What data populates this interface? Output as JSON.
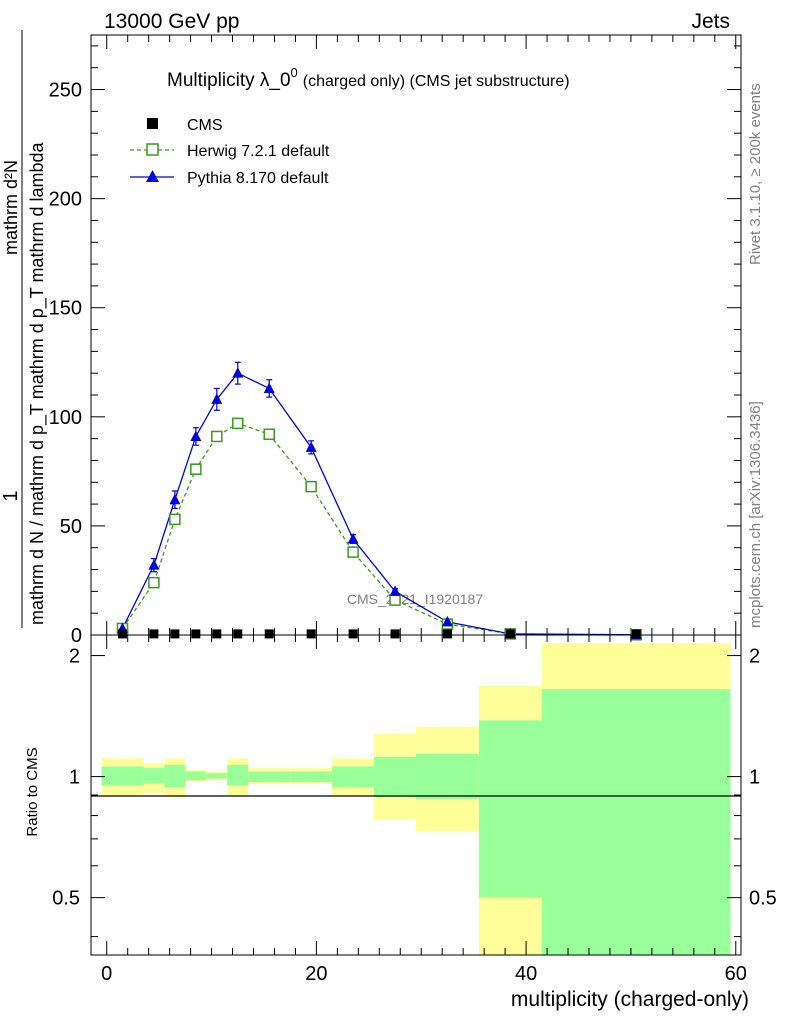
{
  "header": {
    "left": "13000 GeV pp",
    "right": "Jets"
  },
  "side_labels": {
    "rivet": "Rivet 3.1.10, ≥ 200k events",
    "mcplots": "mcplots.cern.ch [arXiv:1306.3436]"
  },
  "watermark": "CMS_2021_I1920187",
  "chart_data": [
    {
      "type": "line",
      "title": "Multiplicity λ_0⁰ (charged only) (CMS jet substructure)",
      "title_parts": {
        "main": "Multiplicity λ_0",
        "sup": "0",
        "sub": "(charged only) (CMS jet substructure)"
      },
      "ylabel_numerator": "1",
      "ylabel_denominator": "mathrm d N / mathrm d p_T mathrm d p_T mathrm d lambda",
      "ylabel_top": "mathrm d²N",
      "xlabel": "",
      "xlim": [
        -1.5,
        60.5
      ],
      "ylim": [
        0,
        275
      ],
      "yticks": [
        0,
        50,
        100,
        150,
        200,
        250
      ],
      "xticks": [
        0,
        20,
        40,
        60
      ],
      "legend": [
        {
          "name": "CMS",
          "marker": "square-filled",
          "color": "#000000"
        },
        {
          "name": "Herwig 7.2.1 default",
          "marker": "square-open",
          "color": "#3a9a1c",
          "dash": true
        },
        {
          "name": "Pythia 8.170 default",
          "marker": "triangle",
          "color": "#0000e0"
        }
      ],
      "series": [
        {
          "name": "CMS",
          "x": [
            1.5,
            4.5,
            6.5,
            8.5,
            10.5,
            12.5,
            15.5,
            19.5,
            23.5,
            27.5,
            32.5,
            38.5,
            50.5
          ],
          "values": [
            0.5,
            0.5,
            0.5,
            0.5,
            0.5,
            0.5,
            0.5,
            0.5,
            0.5,
            0.5,
            0.5,
            0.5,
            0.5
          ]
        },
        {
          "name": "Herwig 7.2.1 default",
          "x": [
            1.5,
            4.5,
            6.5,
            8.5,
            10.5,
            12.5,
            15.5,
            19.5,
            23.5,
            27.5,
            32.5,
            38.5,
            50.5
          ],
          "values": [
            3,
            24,
            53,
            76,
            91,
            97,
            92,
            68,
            38,
            16,
            5,
            0.5,
            0.1
          ]
        },
        {
          "name": "Pythia 8.170 default",
          "x": [
            1.5,
            4.5,
            6.5,
            8.5,
            10.5,
            12.5,
            15.5,
            19.5,
            23.5,
            27.5,
            32.5,
            38.5,
            50.5
          ],
          "values": [
            3,
            32,
            62,
            91,
            108,
            120,
            113,
            86,
            44,
            20,
            6,
            0.5,
            0.1
          ],
          "errors": [
            0.5,
            3,
            4,
            4,
            5,
            5,
            4,
            3,
            2,
            1.2,
            0.6,
            0.2,
            0.1
          ]
        }
      ]
    },
    {
      "type": "area",
      "title": "",
      "ylabel": "Ratio to CMS",
      "xlabel": "multiplicity (charged-only)",
      "xlim": [
        -1.5,
        60.5
      ],
      "ylim": [
        0.36,
        2.25
      ],
      "yscale": "log",
      "yticks": [
        0.5,
        1,
        2
      ],
      "ytick_labels": [
        "0.5",
        "1",
        "2"
      ],
      "xticks": [
        0,
        20,
        40,
        60
      ],
      "xtick_labels": [
        "0",
        "20",
        "40",
        "60"
      ],
      "bands": {
        "bin_edges": [
          -0.5,
          3.5,
          5.5,
          7.5,
          9.5,
          11.5,
          13.5,
          17.5,
          21.5,
          25.5,
          29.5,
          35.5,
          41.5,
          59.5
        ],
        "stat_low": [
          0.95,
          0.96,
          0.94,
          0.98,
          0.99,
          0.95,
          0.97,
          0.97,
          0.94,
          0.89,
          0.88,
          0.5,
          0.36
        ],
        "stat_high": [
          1.06,
          1.05,
          1.07,
          1.03,
          1.02,
          1.07,
          1.03,
          1.03,
          1.06,
          1.12,
          1.14,
          1.38,
          1.65
        ],
        "total_low": [
          0.9,
          0.91,
          0.89,
          0.97,
          0.98,
          0.9,
          0.96,
          0.96,
          0.9,
          0.78,
          0.73,
          0.36,
          0.36
        ],
        "total_high": [
          1.11,
          1.08,
          1.11,
          1.04,
          1.03,
          1.11,
          1.05,
          1.05,
          1.11,
          1.28,
          1.33,
          1.68,
          2.15
        ]
      },
      "band_colors": {
        "stat": "#99ff99",
        "total": "#ffff99"
      }
    }
  ],
  "tick_labels": {
    "main_y": [
      "0",
      "50",
      "100",
      "150",
      "200",
      "250"
    ],
    "ratio_y_left": [
      "0.5",
      "1",
      "2"
    ],
    "ratio_y_right": [
      "0.5",
      "1",
      "2"
    ],
    "x": [
      "0",
      "20",
      "40",
      "60"
    ]
  }
}
